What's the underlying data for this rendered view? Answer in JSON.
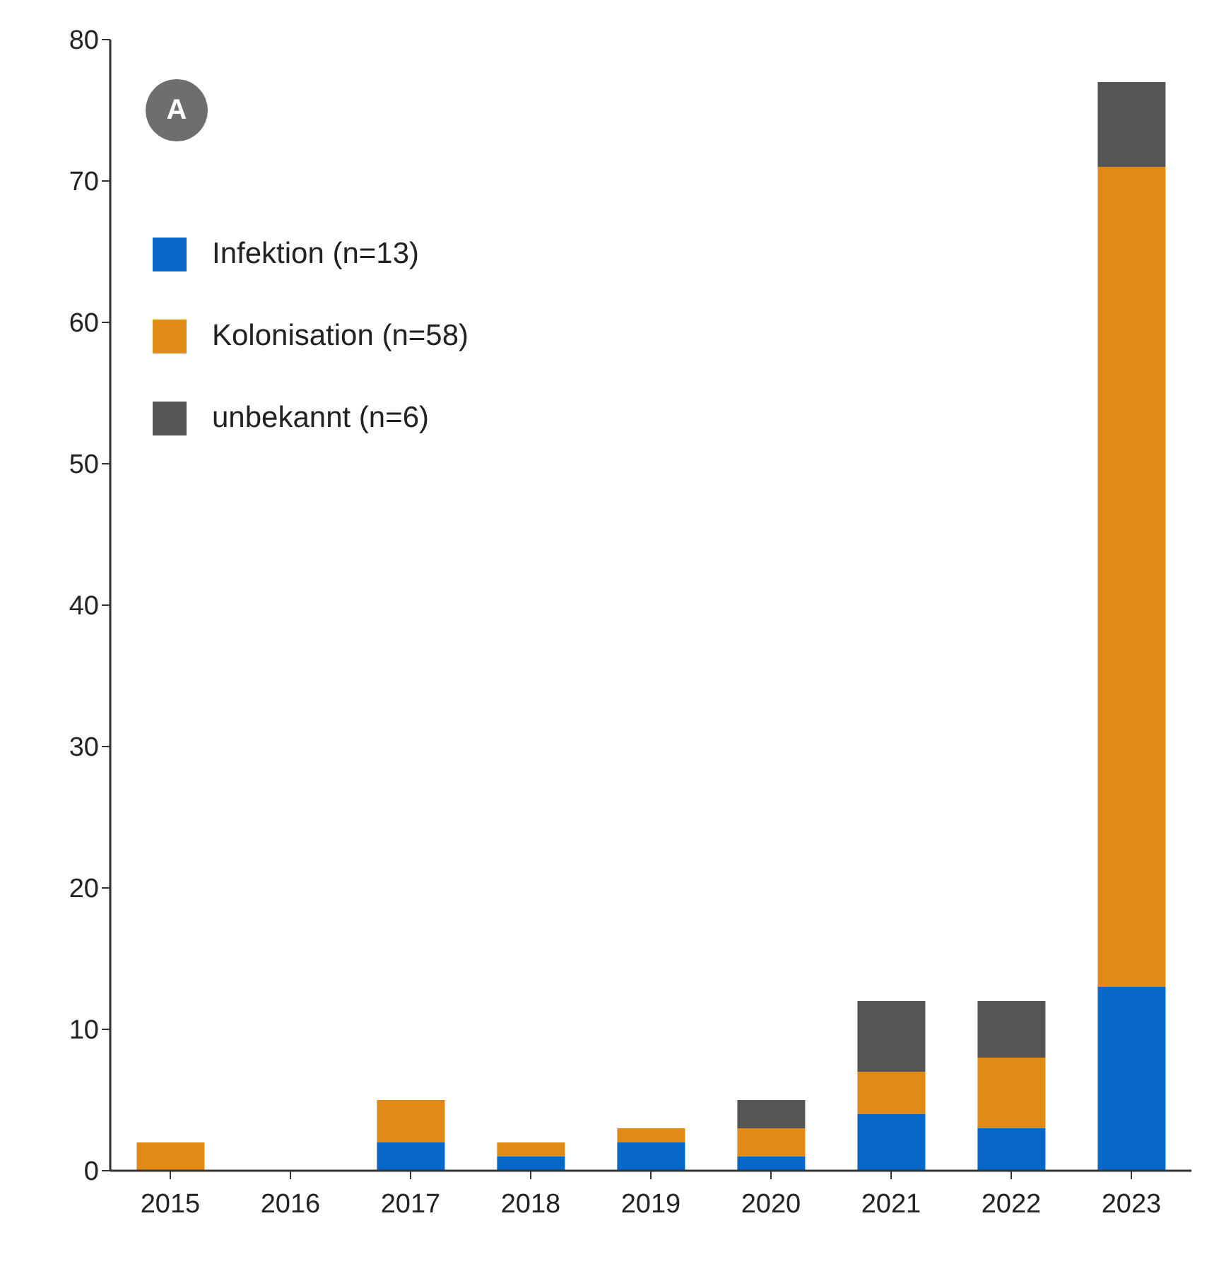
{
  "chart_data": {
    "type": "bar",
    "stacked": true,
    "categories": [
      "2015",
      "2016",
      "2017",
      "2018",
      "2019",
      "2020",
      "2021",
      "2022",
      "2023"
    ],
    "series": [
      {
        "name": "Infektion (n=13)",
        "color": "#0868c8",
        "values": [
          0,
          0,
          2,
          1,
          2,
          1,
          4,
          3,
          13
        ]
      },
      {
        "name": "Kolonisation (n=58)",
        "color": "#e08a17",
        "values": [
          2,
          0,
          3,
          1,
          1,
          2,
          3,
          5,
          58
        ]
      },
      {
        "name": "unbekannt (n=6)",
        "color": "#555555",
        "values": [
          0,
          0,
          0,
          0,
          0,
          2,
          5,
          4,
          6
        ]
      }
    ],
    "ylim": [
      0,
      80
    ],
    "yticks": [
      0,
      10,
      20,
      30,
      40,
      50,
      60,
      70,
      80
    ],
    "grid": false,
    "legend": "top left",
    "annotations": [
      "A"
    ]
  }
}
